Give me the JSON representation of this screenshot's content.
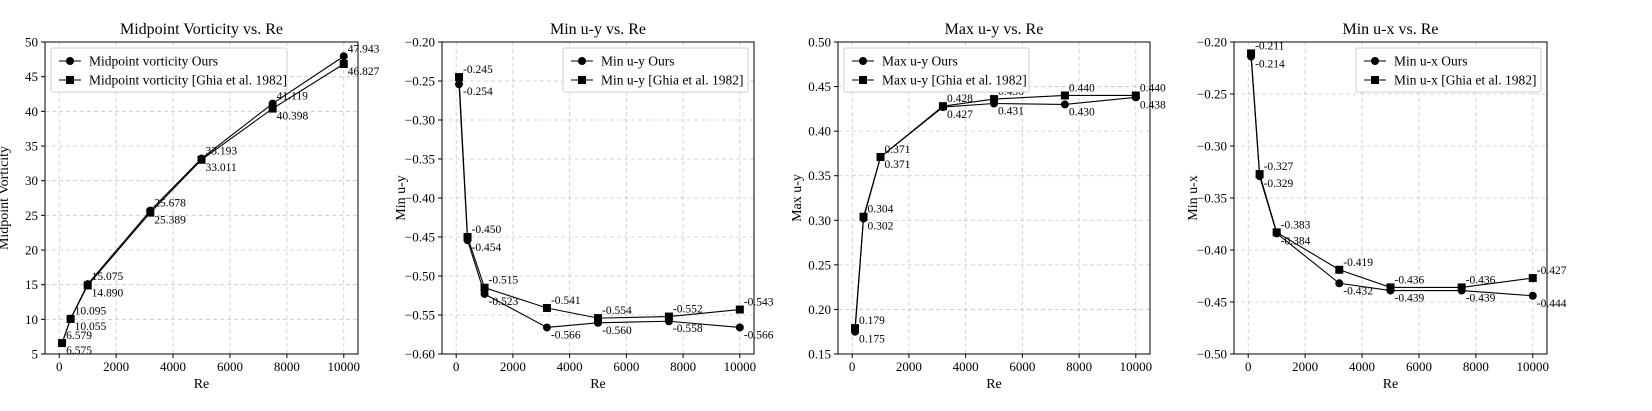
{
  "chart_data": [
    {
      "type": "line",
      "title": "Midpoint Vorticity vs. Re",
      "xlabel": "Re",
      "ylabel": "Midpoint Vorticity",
      "xlim": [
        -500,
        10500
      ],
      "ylim": [
        5,
        50
      ],
      "xticks": [
        0,
        2000,
        4000,
        6000,
        8000,
        10000
      ],
      "xtick_labels": [
        "0",
        "2000",
        "4000",
        "6000",
        "8000",
        "10000"
      ],
      "yticks": [
        5,
        10,
        15,
        20,
        25,
        30,
        35,
        40,
        45,
        50
      ],
      "ytick_labels": [
        "5",
        "10",
        "15",
        "20",
        "25",
        "30",
        "35",
        "40",
        "45",
        "50"
      ],
      "legend": "upper-left",
      "grid": true,
      "x": [
        100,
        400,
        1000,
        3200,
        5000,
        7500,
        10000
      ],
      "series": [
        {
          "name": "Midpoint vorticity Ours",
          "marker": "circle",
          "values": [
            6.579,
            10.095,
            15.075,
            25.678,
            33.193,
            41.119,
            47.943
          ],
          "labels": [
            "6.579",
            "10.095",
            "15.075",
            "25.678",
            "33.193",
            "41.119",
            "47.943"
          ]
        },
        {
          "name": "Midpoint vorticity [Ghia et al. 1982]",
          "marker": "square",
          "values": [
            6.575,
            10.055,
            14.89,
            25.389,
            33.011,
            40.398,
            46.827
          ],
          "labels": [
            "6.575",
            "10.055",
            "14.890",
            "25.389",
            "33.011",
            "40.398",
            "46.827"
          ]
        }
      ]
    },
    {
      "type": "line",
      "title": "Min u-y vs. Re",
      "xlabel": "Re",
      "ylabel": "Min u-y",
      "xlim": [
        -500,
        10500
      ],
      "ylim": [
        -0.6,
        -0.2
      ],
      "xticks": [
        0,
        2000,
        4000,
        6000,
        8000,
        10000
      ],
      "xtick_labels": [
        "0",
        "2000",
        "4000",
        "6000",
        "8000",
        "10000"
      ],
      "yticks": [
        -0.6,
        -0.55,
        -0.5,
        -0.45,
        -0.4,
        -0.35,
        -0.3,
        -0.25,
        -0.2
      ],
      "ytick_labels": [
        "−0.60",
        "−0.55",
        "−0.50",
        "−0.45",
        "−0.40",
        "−0.35",
        "−0.30",
        "−0.25",
        "−0.20"
      ],
      "legend": "upper-right",
      "grid": true,
      "x": [
        100,
        400,
        1000,
        3200,
        5000,
        7500,
        10000
      ],
      "series": [
        {
          "name": "Min u-y Ours",
          "marker": "circle",
          "values": [
            -0.254,
            -0.454,
            -0.523,
            -0.566,
            -0.56,
            -0.558,
            -0.566
          ],
          "labels": [
            "-0.254",
            "-0.454",
            "-0.523",
            "-0.566",
            "-0.560",
            "-0.558",
            "-0.566"
          ]
        },
        {
          "name": "Min u-y [Ghia et al. 1982]",
          "marker": "square",
          "values": [
            -0.245,
            -0.45,
            -0.515,
            -0.541,
            -0.554,
            -0.552,
            -0.543
          ],
          "labels": [
            "-0.245",
            "-0.450",
            "-0.515",
            "-0.541",
            "-0.554",
            "-0.552",
            "-0.543"
          ]
        }
      ]
    },
    {
      "type": "line",
      "title": "Max u-y vs. Re",
      "xlabel": "Re",
      "ylabel": "Max u-y",
      "xlim": [
        -500,
        10500
      ],
      "ylim": [
        0.15,
        0.5
      ],
      "xticks": [
        0,
        2000,
        4000,
        6000,
        8000,
        10000
      ],
      "xtick_labels": [
        "0",
        "2000",
        "4000",
        "6000",
        "8000",
        "10000"
      ],
      "yticks": [
        0.15,
        0.2,
        0.25,
        0.3,
        0.35,
        0.4,
        0.45,
        0.5
      ],
      "ytick_labels": [
        "0.15",
        "0.20",
        "0.25",
        "0.30",
        "0.35",
        "0.40",
        "0.45",
        "0.50"
      ],
      "legend": "upper-left",
      "grid": true,
      "x": [
        100,
        400,
        1000,
        3200,
        5000,
        7500,
        10000
      ],
      "series": [
        {
          "name": "Max u-y Ours",
          "marker": "circle",
          "values": [
            0.175,
            0.302,
            0.371,
            0.427,
            0.431,
            0.43,
            0.438
          ],
          "labels": [
            "0.175",
            "0.302",
            "0.371",
            "0.427",
            "0.431",
            "0.430",
            "0.438"
          ]
        },
        {
          "name": "Max u-y [Ghia et al. 1982]",
          "marker": "square",
          "values": [
            0.179,
            0.304,
            0.371,
            0.428,
            0.436,
            0.44,
            0.44
          ],
          "labels": [
            "0.179",
            "0.304",
            "0.371",
            "0.428",
            "0.436",
            "0.440",
            "0.440"
          ]
        }
      ]
    },
    {
      "type": "line",
      "title": "Min u-x vs. Re",
      "xlabel": "Re",
      "ylabel": "Min u-x",
      "xlim": [
        -500,
        10500
      ],
      "ylim": [
        -0.5,
        -0.2
      ],
      "xticks": [
        0,
        2000,
        4000,
        6000,
        8000,
        10000
      ],
      "xtick_labels": [
        "0",
        "2000",
        "4000",
        "6000",
        "8000",
        "10000"
      ],
      "yticks": [
        -0.5,
        -0.45,
        -0.4,
        -0.35,
        -0.3,
        -0.25,
        -0.2
      ],
      "ytick_labels": [
        "−0.50",
        "−0.45",
        "−0.40",
        "−0.35",
        "−0.30",
        "−0.25",
        "−0.20"
      ],
      "legend": "upper-right",
      "grid": true,
      "x": [
        100,
        400,
        1000,
        3200,
        5000,
        7500,
        10000
      ],
      "series": [
        {
          "name": "Min u-x Ours",
          "marker": "circle",
          "values": [
            -0.214,
            -0.329,
            -0.384,
            -0.432,
            -0.439,
            -0.439,
            -0.444
          ],
          "labels": [
            "-0.214",
            "-0.329",
            "-0.384",
            "-0.432",
            "-0.439",
            "-0.439",
            "-0.444"
          ]
        },
        {
          "name": "Min u-x [Ghia et al. 1982]",
          "marker": "square",
          "values": [
            -0.211,
            -0.327,
            -0.383,
            -0.419,
            -0.436,
            -0.436,
            -0.427
          ],
          "labels": [
            "-0.211",
            "-0.327",
            "-0.383",
            "-0.419",
            "-0.436",
            "-0.436",
            "-0.427"
          ]
        }
      ]
    }
  ]
}
